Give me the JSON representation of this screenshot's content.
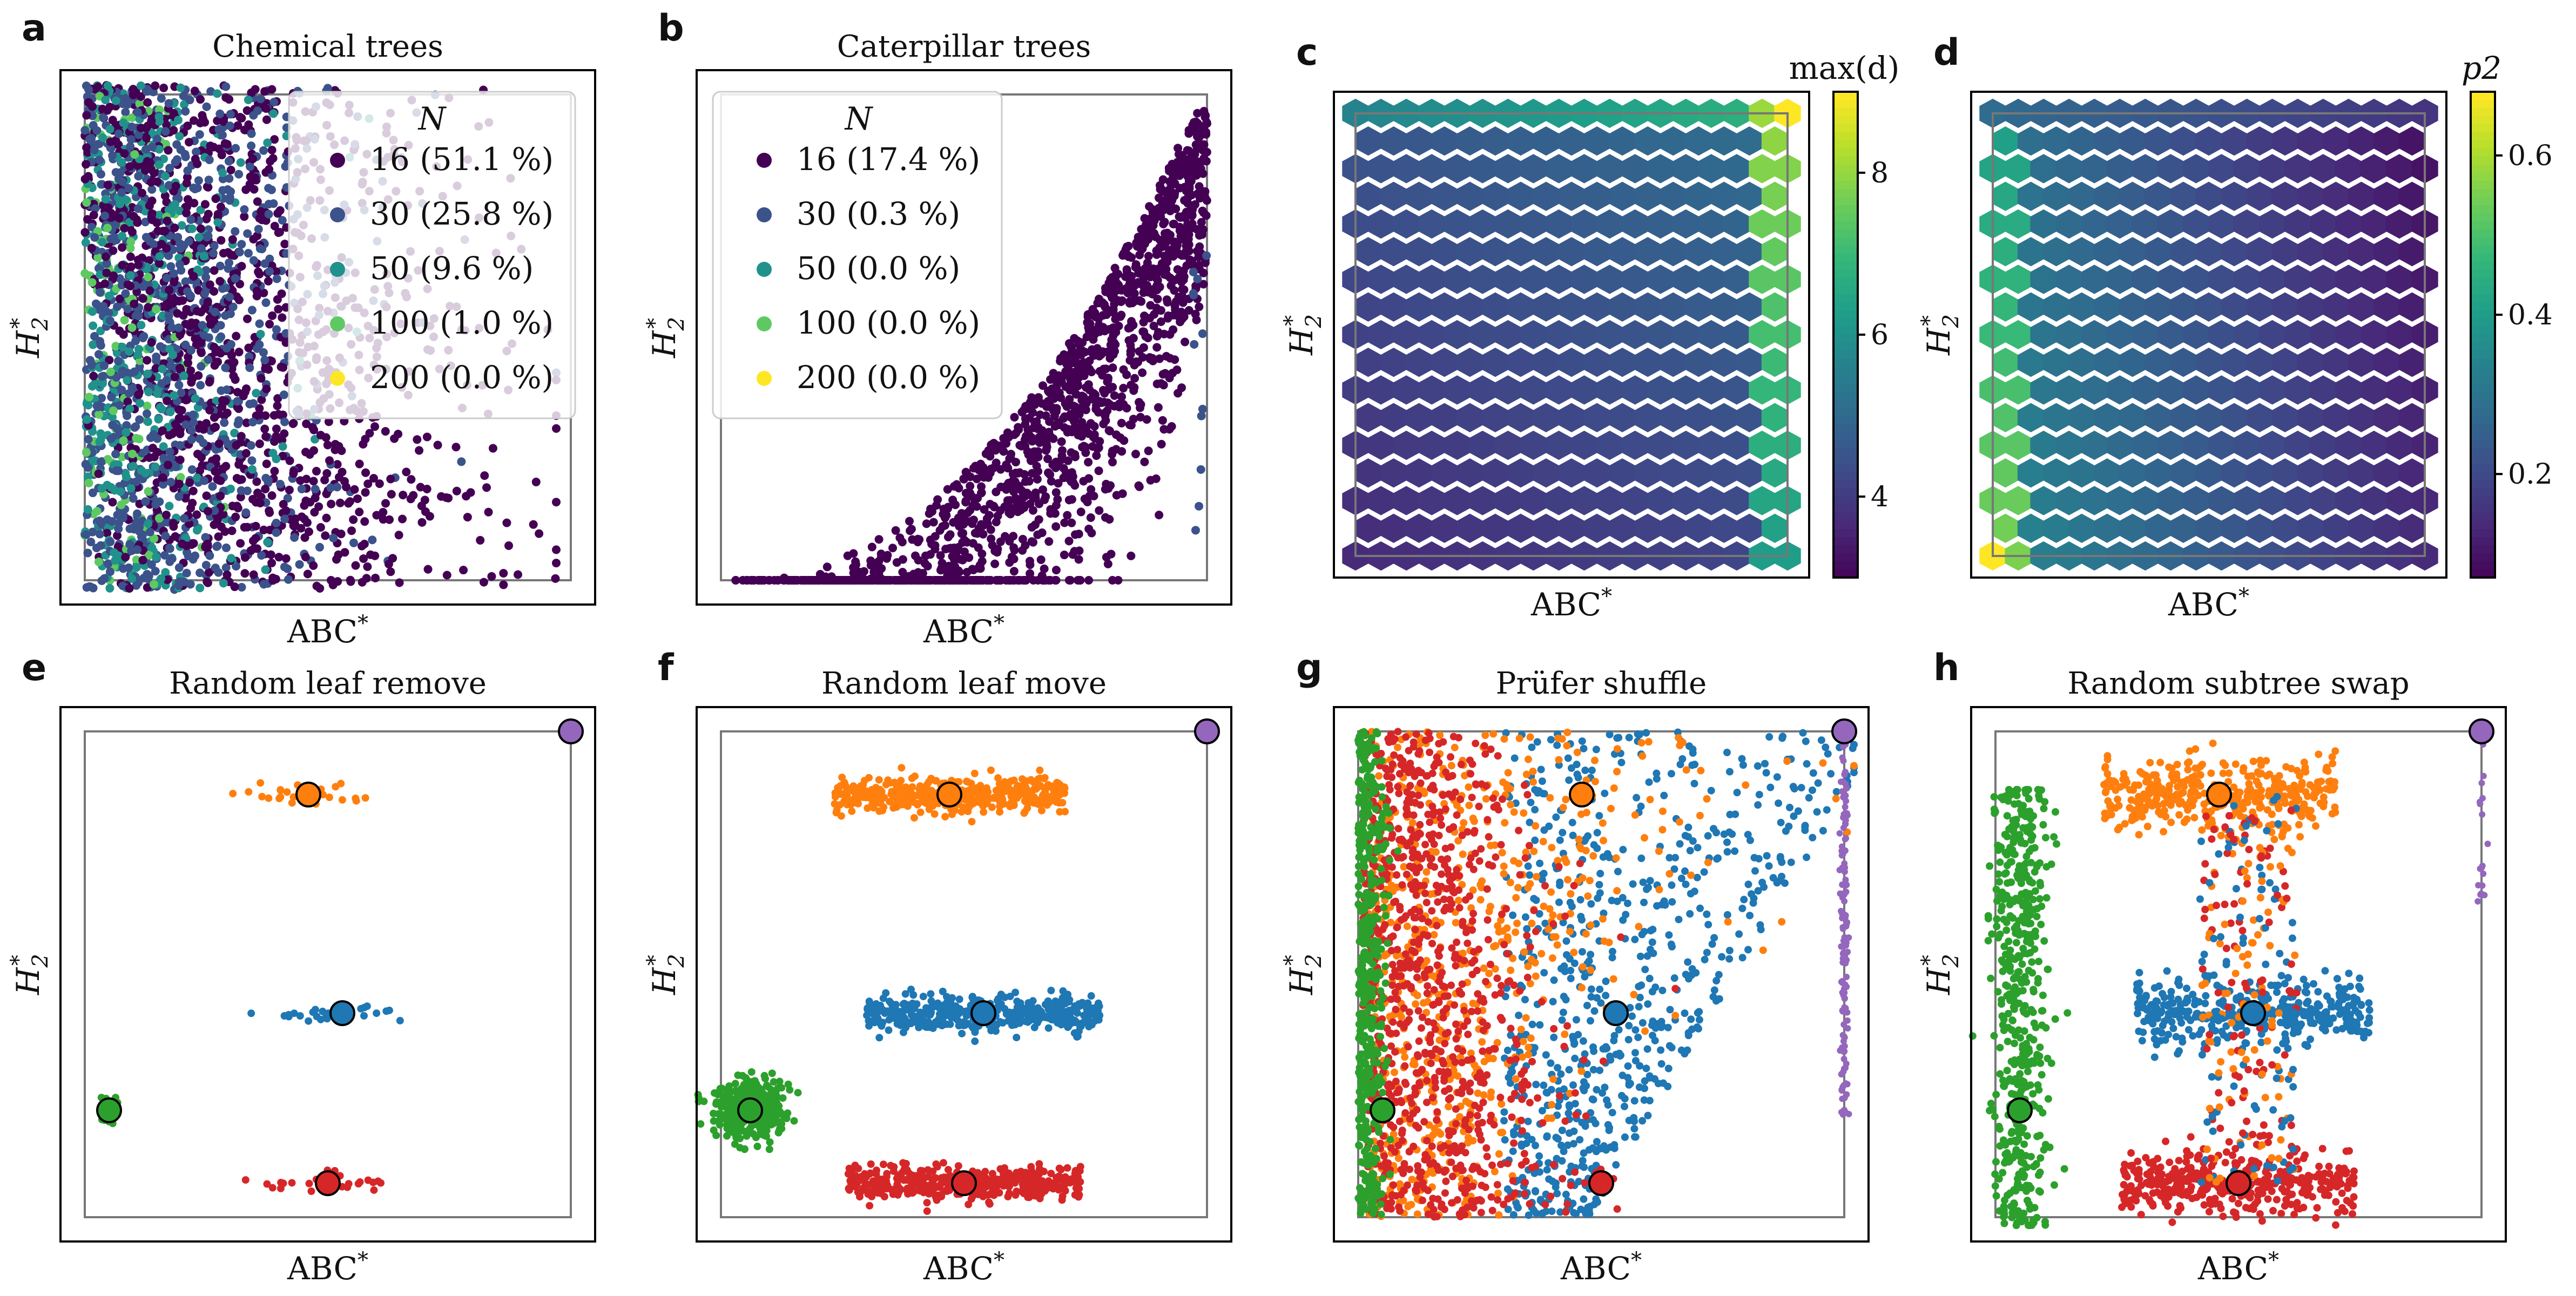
{
  "chart_data": [
    {
      "id": "a",
      "panel_label": "a",
      "type": "scatter",
      "title": "Chemical trees",
      "xlabel": "ABC*",
      "ylabel": "H2*",
      "legend": {
        "title": "N",
        "position": "top-right",
        "entries": [
          {
            "label": "16 (51.1 %)",
            "N": 16,
            "percent": 51.1,
            "color": "#440154"
          },
          {
            "label": "30 (25.8 %)",
            "N": 30,
            "percent": 25.8,
            "color": "#3b528b"
          },
          {
            "label": "50 (9.6 %)",
            "N": 50,
            "percent": 9.6,
            "color": "#21918c"
          },
          {
            "label": "100 (1.0 %)",
            "N": 100,
            "percent": 1.0,
            "color": "#5ec962"
          },
          {
            "label": "200 (0.0 %)",
            "N": 200,
            "percent": 0.0,
            "color": "#fde725"
          }
        ]
      },
      "xlim": [
        0,
        1
      ],
      "ylim": [
        0,
        1
      ],
      "axis_ticks": "none"
    },
    {
      "id": "b",
      "panel_label": "b",
      "type": "scatter",
      "title": "Caterpillar trees",
      "xlabel": "ABC*",
      "ylabel": "H2*",
      "legend": {
        "title": "N",
        "position": "top-left",
        "entries": [
          {
            "label": "16 (17.4 %)",
            "N": 16,
            "percent": 17.4,
            "color": "#440154"
          },
          {
            "label": "30 (0.3 %)",
            "N": 30,
            "percent": 0.3,
            "color": "#3b528b"
          },
          {
            "label": "50 (0.0 %)",
            "N": 50,
            "percent": 0.0,
            "color": "#21918c"
          },
          {
            "label": "100 (0.0 %)",
            "N": 100,
            "percent": 0.0,
            "color": "#5ec962"
          },
          {
            "label": "200 (0.0 %)",
            "N": 200,
            "percent": 0.0,
            "color": "#fde725"
          }
        ]
      },
      "xlim": [
        0,
        1
      ],
      "ylim": [
        0,
        1
      ],
      "axis_ticks": "none"
    },
    {
      "id": "c",
      "panel_label": "c",
      "type": "heatmap",
      "subtype": "hexbin",
      "xlabel": "ABC*",
      "ylabel": "H2*",
      "colorbar": {
        "label": "max(d)",
        "range": [
          3,
          9
        ],
        "ticks": [
          4,
          6,
          8
        ],
        "colormap": "viridis"
      }
    },
    {
      "id": "d",
      "panel_label": "d",
      "type": "heatmap",
      "subtype": "hexbin",
      "xlabel": "ABC*",
      "ylabel": "H2*",
      "colorbar": {
        "label": "p2",
        "range": [
          0.07,
          0.68
        ],
        "ticks": [
          0.2,
          0.4,
          0.6
        ],
        "colormap": "viridis"
      }
    },
    {
      "id": "e",
      "panel_label": "e",
      "type": "scatter",
      "title": "Random leaf remove",
      "xlabel": "ABC*",
      "ylabel": "H2*",
      "xlim": [
        0,
        1
      ],
      "ylim": [
        0,
        1
      ],
      "axis_ticks": "none",
      "centers": [
        {
          "name": "purple",
          "color": "#9467bd",
          "x": 1.0,
          "y": 1.0
        },
        {
          "name": "orange",
          "color": "#ff7f0e",
          "x": 0.46,
          "y": 0.87
        },
        {
          "name": "blue",
          "color": "#1f77b4",
          "x": 0.53,
          "y": 0.42
        },
        {
          "name": "green",
          "color": "#2ca02c",
          "x": 0.05,
          "y": 0.22
        },
        {
          "name": "red",
          "color": "#d62728",
          "x": 0.5,
          "y": 0.07
        }
      ]
    },
    {
      "id": "f",
      "panel_label": "f",
      "type": "scatter",
      "title": "Random leaf move",
      "xlabel": "ABC*",
      "ylabel": "H2*",
      "xlim": [
        0,
        1
      ],
      "ylim": [
        0,
        1
      ],
      "axis_ticks": "none",
      "centers": [
        {
          "name": "purple",
          "color": "#9467bd",
          "x": 1.0,
          "y": 1.0
        },
        {
          "name": "orange",
          "color": "#ff7f0e",
          "x": 0.47,
          "y": 0.87
        },
        {
          "name": "blue",
          "color": "#1f77b4",
          "x": 0.54,
          "y": 0.42
        },
        {
          "name": "green",
          "color": "#2ca02c",
          "x": 0.06,
          "y": 0.22
        },
        {
          "name": "red",
          "color": "#d62728",
          "x": 0.5,
          "y": 0.07
        }
      ]
    },
    {
      "id": "g",
      "panel_label": "g",
      "type": "scatter",
      "title": "Prüfer shuffle",
      "xlabel": "ABC*",
      "ylabel": "H2*",
      "xlim": [
        0,
        1
      ],
      "ylim": [
        0,
        1
      ],
      "axis_ticks": "none",
      "centers": [
        {
          "name": "purple",
          "color": "#9467bd",
          "x": 1.0,
          "y": 1.0
        },
        {
          "name": "orange",
          "color": "#ff7f0e",
          "x": 0.46,
          "y": 0.87
        },
        {
          "name": "blue",
          "color": "#1f77b4",
          "x": 0.53,
          "y": 0.42
        },
        {
          "name": "green",
          "color": "#2ca02c",
          "x": 0.05,
          "y": 0.22
        },
        {
          "name": "red",
          "color": "#d62728",
          "x": 0.5,
          "y": 0.07
        }
      ]
    },
    {
      "id": "h",
      "panel_label": "h",
      "type": "scatter",
      "title": "Random subtree swap",
      "xlabel": "ABC*",
      "ylabel": "H2*",
      "xlim": [
        0,
        1
      ],
      "ylim": [
        0,
        1
      ],
      "axis_ticks": "none",
      "centers": [
        {
          "name": "purple",
          "color": "#9467bd",
          "x": 1.0,
          "y": 1.0
        },
        {
          "name": "orange",
          "color": "#ff7f0e",
          "x": 0.46,
          "y": 0.87
        },
        {
          "name": "blue",
          "color": "#1f77b4",
          "x": 0.53,
          "y": 0.42
        },
        {
          "name": "green",
          "color": "#2ca02c",
          "x": 0.05,
          "y": 0.22
        },
        {
          "name": "red",
          "color": "#d62728",
          "x": 0.5,
          "y": 0.07
        }
      ]
    }
  ]
}
